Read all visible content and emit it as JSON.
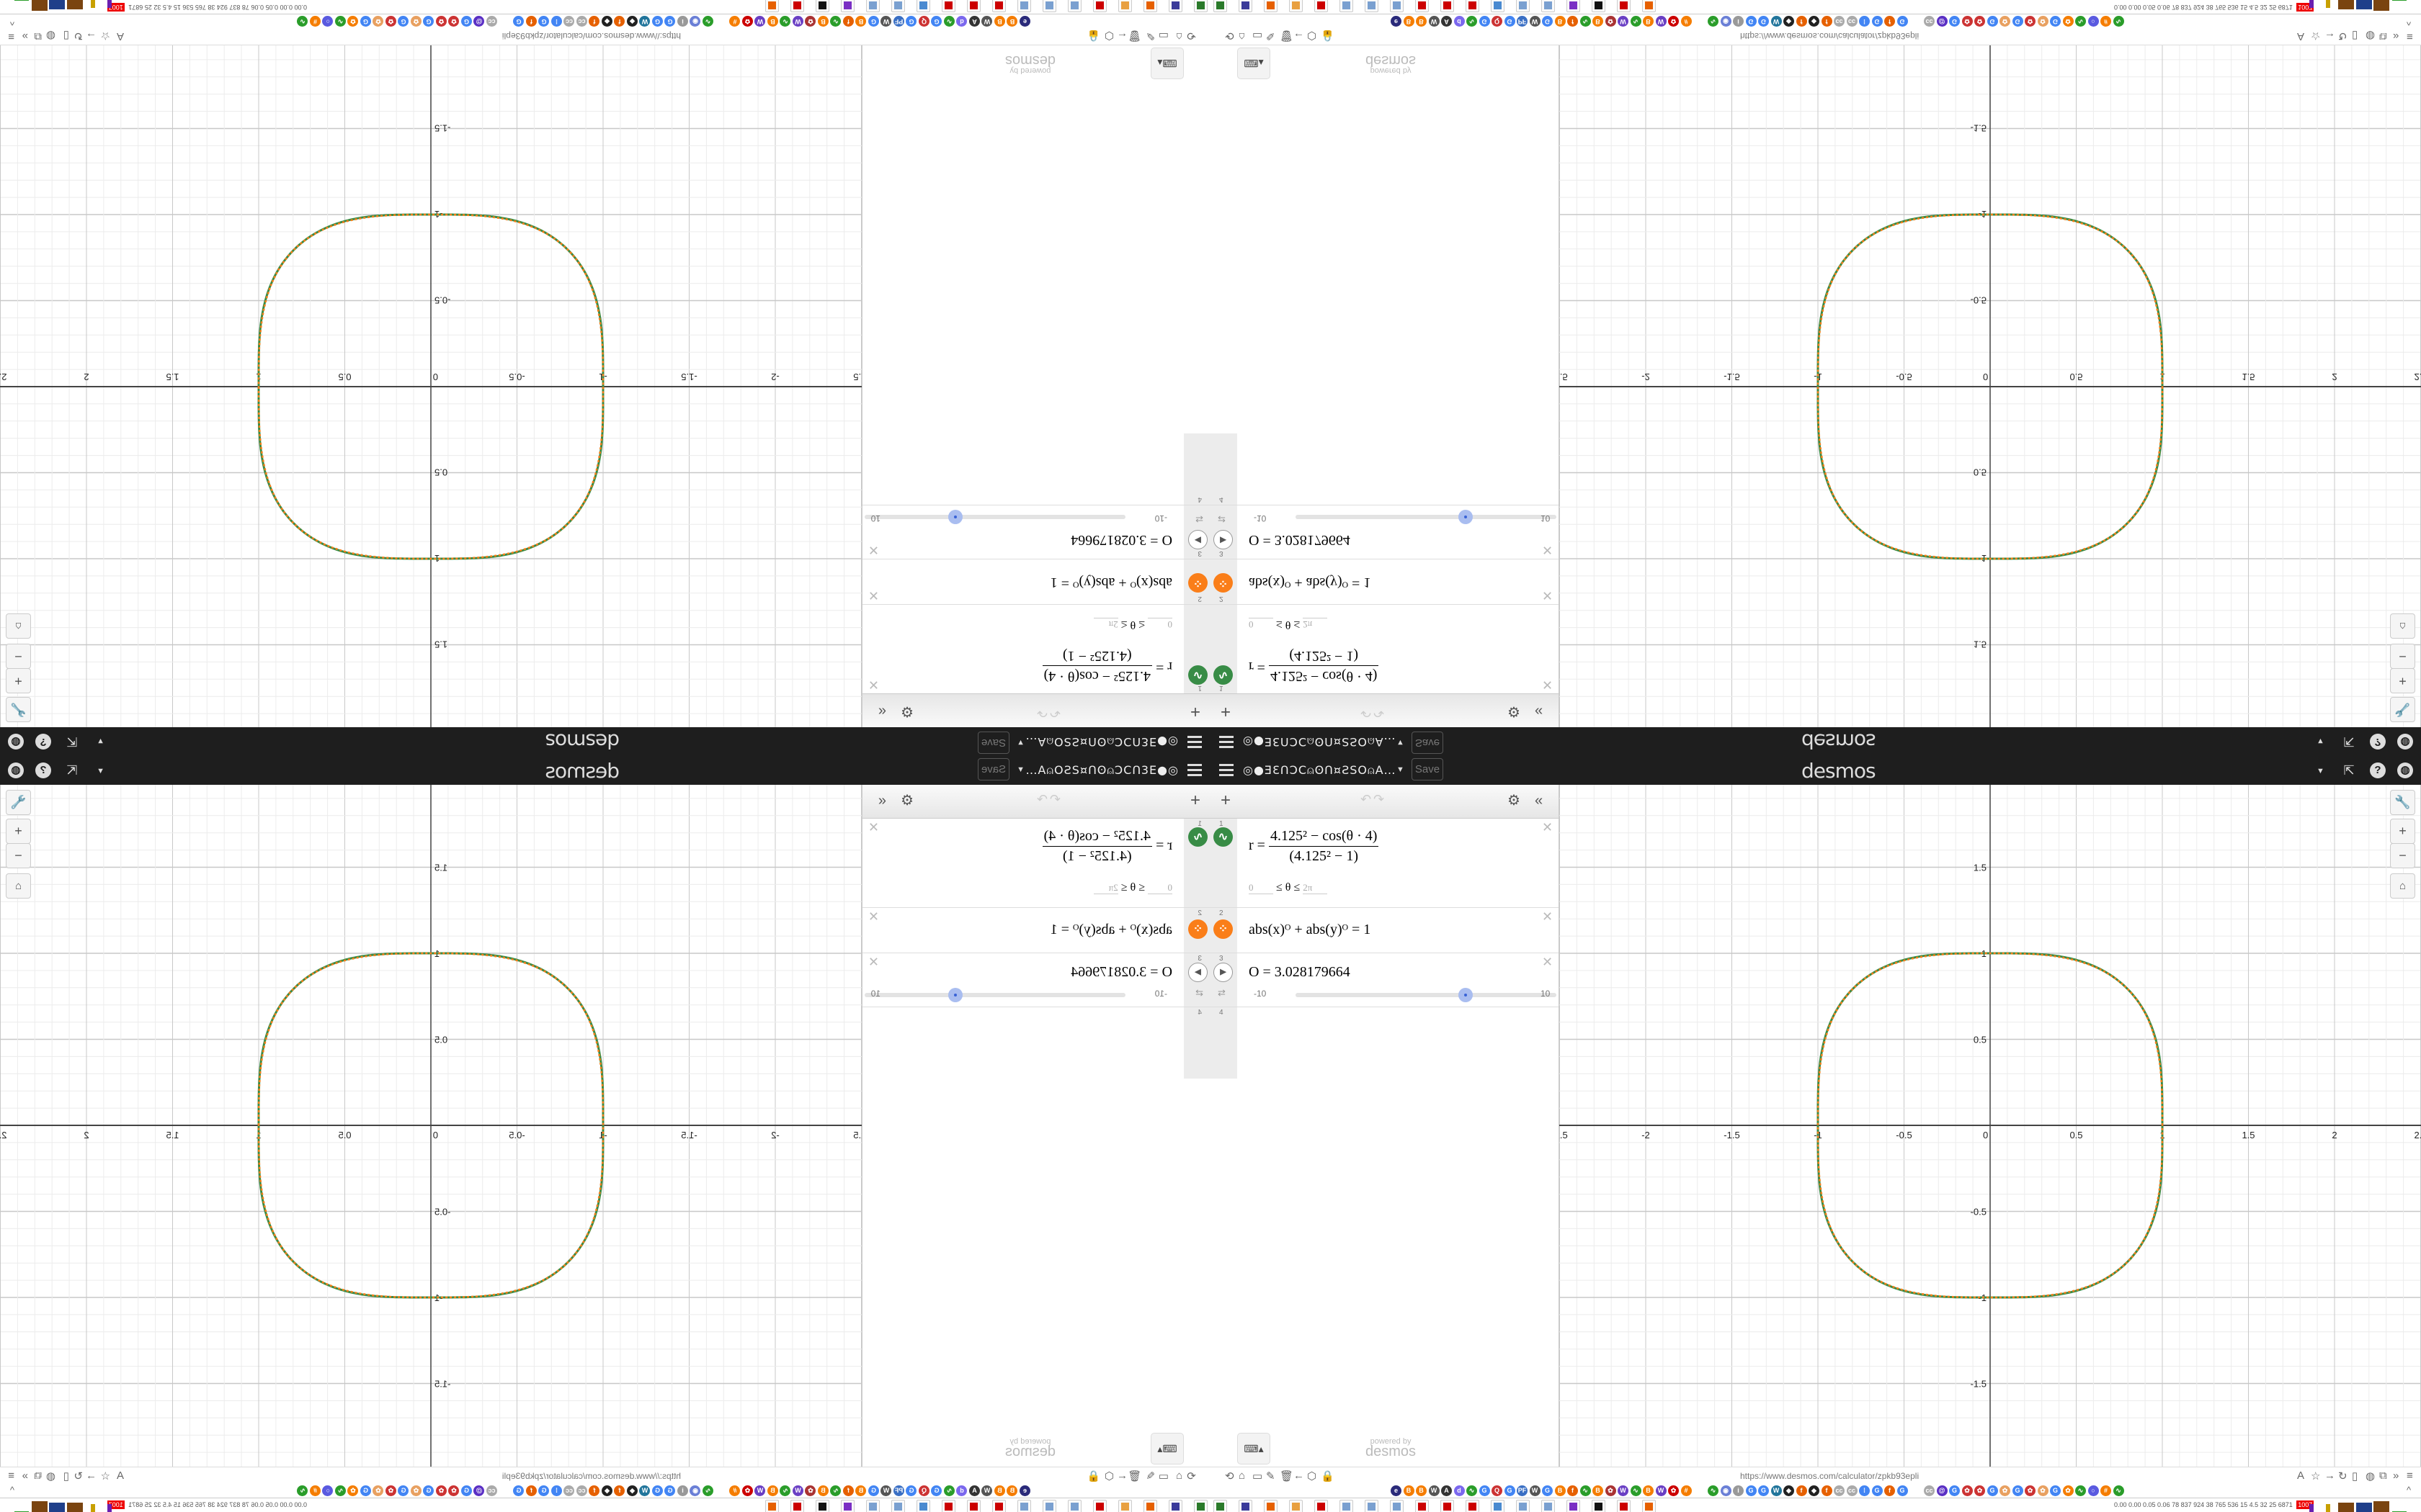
{
  "header": {
    "title": "◎●ƎƐՈƆC⍝ʘՈ¤ƧSO⍝A…",
    "save_label": "Save",
    "logo": "desmos",
    "menu_icon": "hamburger-icon",
    "right_icons": [
      "share-icon",
      "help-icon",
      "globe-icon"
    ]
  },
  "expressions_toolbar": {
    "add": "+",
    "undo": "↶",
    "redo": "↷",
    "settings": "⚙",
    "collapse": "«"
  },
  "expressions": [
    {
      "num": "1",
      "type": "parametric",
      "color": "#388c46",
      "lhs": "r =",
      "numerator": "4.125² − cos(θ · 4)",
      "denominator": "(4.125² − 1)",
      "domain_min": "0",
      "domain_op": "≤ θ ≤",
      "domain_max": "2π"
    },
    {
      "num": "2",
      "type": "implicit",
      "color": "#fa7e19",
      "latex": "abs(x)ᴼ + abs(y)ᴼ = 1"
    },
    {
      "num": "3",
      "type": "slider",
      "latex": "O = 3.028179664",
      "slider": {
        "min": "-10",
        "max": "10",
        "value": 3.028179664
      }
    },
    {
      "num": "4"
    }
  ],
  "graph": {
    "x_ticks": [
      "-2.5",
      "-2",
      "-1.5",
      "-1",
      "-0.5",
      "0",
      "0.5",
      "1",
      "1.5",
      "2",
      "2.5"
    ],
    "y_ticks": [
      "1.5",
      "1",
      "0.5",
      "-0.5",
      "-1",
      "-1.5"
    ],
    "x_range": [
      -2.5,
      2.5
    ],
    "y_range": [
      -1.97,
      1.97
    ],
    "O": 3.028179664,
    "a": 4.125,
    "curve_colors": {
      "polar": "#388c46",
      "implicit": "#fa7e19"
    },
    "controls": [
      "wrench-icon",
      "zoom-in-icon",
      "zoom-out-icon",
      "home-icon"
    ]
  },
  "keyboard_button": "⌨▴",
  "powered_by": {
    "line1": "powered by",
    "line2": "desmos"
  },
  "browser": {
    "url": "https://www.desmos.com/calculator/zpkb93epli",
    "left_icons": [
      "sync-icon",
      "home-icon",
      "page-icon",
      "pencil-icon",
      "trash-icon",
      "back-icon",
      "shield-icon",
      "lock-icon"
    ],
    "right_icons": [
      "translate-icon",
      "star-icon",
      "forward-icon",
      "reload-icon",
      "reader-icon",
      "globe-icon",
      "extension-icon",
      "overflow-icon",
      "menu-icon"
    ],
    "bookmarks": [
      {
        "g": "e",
        "c": "#2a2a7a"
      },
      {
        "g": "B",
        "c": "#f57d00"
      },
      {
        "g": "B",
        "c": "#f57d00"
      },
      {
        "g": "W",
        "c": "#555"
      },
      {
        "g": "A",
        "c": "#333"
      },
      {
        "g": "d",
        "c": "#7b68ee"
      },
      {
        "g": "∿",
        "c": "#2a9d2a"
      },
      {
        "g": "G",
        "c": "#4285f4"
      },
      {
        "g": "Q",
        "c": "#c33"
      },
      {
        "g": "G",
        "c": "#4285f4"
      },
      {
        "g": "PF",
        "c": "#3a6fc4"
      },
      {
        "g": "W",
        "c": "#555"
      },
      {
        "g": "G",
        "c": "#4285f4"
      },
      {
        "g": "B",
        "c": "#f57d00"
      },
      {
        "g": "f",
        "c": "#e66000"
      },
      {
        "g": "∿",
        "c": "#2a9d2a"
      },
      {
        "g": "B",
        "c": "#f57d00"
      },
      {
        "g": "✿",
        "c": "#a33"
      },
      {
        "g": "W",
        "c": "#6a3fc4"
      },
      {
        "g": "∿",
        "c": "#2a9d2a"
      },
      {
        "g": "B",
        "c": "#f57d00"
      },
      {
        "g": "W",
        "c": "#6a3fc4"
      },
      {
        "g": "✿",
        "c": "#c00"
      },
      {
        "g": "#",
        "c": "#f57d00"
      },
      {
        "g": "∿",
        "c": "#2a9d2a"
      },
      {
        "g": "◉",
        "c": "#6a7fd6"
      },
      {
        "g": "i",
        "c": "#999"
      },
      {
        "g": "G",
        "c": "#4285f4"
      },
      {
        "g": "G",
        "c": "#4285f4"
      },
      {
        "g": "W",
        "c": "#21759b"
      },
      {
        "g": "◆",
        "c": "#222"
      },
      {
        "g": "f",
        "c": "#e66000"
      },
      {
        "g": "◆",
        "c": "#222"
      },
      {
        "g": "f",
        "c": "#e66000"
      },
      {
        "g": "cc",
        "c": "#aaa"
      },
      {
        "g": "cc",
        "c": "#aaa"
      },
      {
        "g": "⁞",
        "c": "#4285f4"
      },
      {
        "g": "G",
        "c": "#4285f4"
      },
      {
        "g": "f",
        "c": "#e66000"
      },
      {
        "g": "G",
        "c": "#4285f4"
      },
      {
        "g": "cc",
        "c": "#aaa"
      },
      {
        "g": "@",
        "c": "#5a2fc4"
      },
      {
        "g": "G",
        "c": "#4285f4"
      },
      {
        "g": "✿",
        "c": "#c33"
      },
      {
        "g": "✿",
        "c": "#c33"
      },
      {
        "g": "G",
        "c": "#4285f4"
      },
      {
        "g": "✿",
        "c": "#e8a060"
      },
      {
        "g": "G",
        "c": "#4285f4"
      },
      {
        "g": "✿",
        "c": "#c33"
      },
      {
        "g": "✿",
        "c": "#e8a060"
      },
      {
        "g": "G",
        "c": "#4285f4"
      },
      {
        "g": "✿",
        "c": "#f57d00"
      },
      {
        "g": "∿",
        "c": "#2a9d2a"
      },
      {
        "g": "○",
        "c": "#5a5ae0"
      },
      {
        "g": "#",
        "c": "#f57d00"
      },
      {
        "g": "∿",
        "c": "#2a9d2a"
      }
    ],
    "bookmarks_overflow": "^"
  },
  "taskbar": {
    "apps": [
      "#2a7a2a",
      "#3a3a9a",
      "#e66000",
      "#e8a040",
      "#c00",
      "#7aa0d0",
      "#7aa0d0",
      "#7aa0d0",
      "#c00",
      "#c00",
      "#c00",
      "#4a8ad0",
      "#7aa0d0",
      "#7aa0d0",
      "#7a2fc4",
      "#111",
      "#c00",
      "#e66000"
    ],
    "tray_text": "0.00 0.00 0.05 0.06  78  837  924  38  765  536  15  4.5  32  25  6871",
    "tray_badge": "1007",
    "tray_badge_color": "#e00"
  }
}
